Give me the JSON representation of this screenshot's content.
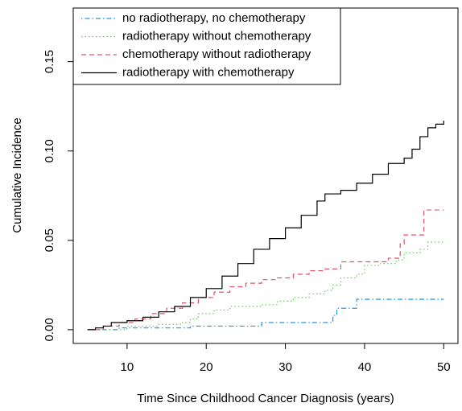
{
  "chart_data": {
    "type": "line",
    "step": true,
    "xlabel": "Time Since Childhood Cancer Diagnosis (years)",
    "ylabel": "Cumulative Incidence",
    "xlim": [
      3.2,
      51.8
    ],
    "ylim": [
      -0.0077,
      0.18
    ],
    "xticks": [
      10,
      20,
      30,
      40,
      50
    ],
    "yticks": [
      {
        "value": 0,
        "label": "0.00"
      },
      {
        "value": 0.05,
        "label": "0.05"
      },
      {
        "value": 0.1,
        "label": "0.10"
      },
      {
        "value": 0.15,
        "label": "0.15"
      }
    ],
    "legend": "top-left",
    "series": [
      {
        "name": "no radiotherapy, no chemotherapy",
        "color": "#2297E6",
        "linestyle": "dotdash",
        "x": [
          5,
          9,
          18,
          27,
          36,
          36.5,
          39,
          50
        ],
        "values": [
          0,
          0.001,
          0.002,
          0.004,
          0.008,
          0.012,
          0.017,
          0.017
        ]
      },
      {
        "name": "radiotherapy without chemotherapy",
        "color": "#61D04F",
        "linestyle": "dotted",
        "x": [
          5,
          10,
          14,
          17,
          18,
          19,
          21,
          23,
          27,
          29,
          31,
          33,
          35,
          36,
          37,
          39,
          40,
          42,
          44,
          45,
          47,
          48,
          50
        ],
        "values": [
          0,
          0.002,
          0.003,
          0.004,
          0.006,
          0.009,
          0.011,
          0.013,
          0.014,
          0.016,
          0.018,
          0.02,
          0.022,
          0.025,
          0.029,
          0.031,
          0.036,
          0.037,
          0.039,
          0.043,
          0.045,
          0.049,
          0.049
        ]
      },
      {
        "name": "chemotherapy without radiotherapy",
        "color": "#DF536B",
        "linestyle": "dashed",
        "x": [
          5,
          7,
          9,
          11,
          13,
          15,
          17,
          19,
          21,
          23,
          25,
          27,
          29,
          31,
          33,
          35,
          37,
          41,
          43,
          44.5,
          45,
          47.5,
          50
        ],
        "values": [
          0,
          0.002,
          0.004,
          0.006,
          0.009,
          0.012,
          0.015,
          0.018,
          0.021,
          0.024,
          0.026,
          0.028,
          0.029,
          0.031,
          0.033,
          0.034,
          0.038,
          0.038,
          0.04,
          0.048,
          0.053,
          0.067,
          0.067
        ]
      },
      {
        "name": "radiotherapy with chemotherapy",
        "color": "#000000",
        "linestyle": "solid",
        "x": [
          5,
          6,
          7,
          8,
          10,
          12,
          14,
          16,
          18,
          20,
          22,
          24,
          26,
          28,
          30,
          32,
          34,
          35,
          37,
          39,
          41,
          43,
          45,
          46,
          47,
          48,
          49,
          50
        ],
        "values": [
          0,
          0.001,
          0.002,
          0.004,
          0.005,
          0.007,
          0.01,
          0.013,
          0.018,
          0.023,
          0.03,
          0.037,
          0.045,
          0.051,
          0.057,
          0.064,
          0.072,
          0.076,
          0.078,
          0.082,
          0.087,
          0.093,
          0.096,
          0.101,
          0.108,
          0.113,
          0.115,
          0.117
        ]
      }
    ]
  }
}
